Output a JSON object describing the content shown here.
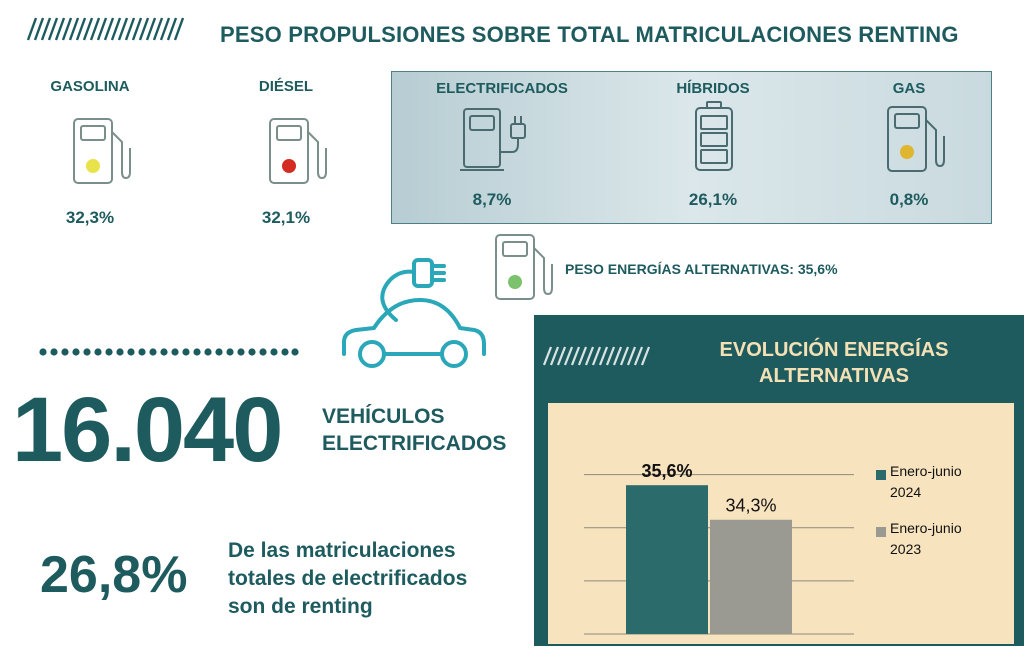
{
  "header": {
    "title": "PESO PROPULSIONES SOBRE TOTAL MATRICULACIONES RENTING"
  },
  "fuels": [
    {
      "label": "GASOLINA",
      "value": "32,3%",
      "icon": "fuel-pump-icon",
      "dot_color": "#e8e34a"
    },
    {
      "label": "DIÉSEL",
      "value": "32,1%",
      "icon": "fuel-pump-icon",
      "dot_color": "#d42b23"
    }
  ],
  "alternatives": [
    {
      "label": "ELECTRIFICADOS",
      "value": "8,7%",
      "icon": "electric-charger-icon"
    },
    {
      "label": "HÍBRIDOS",
      "value": "26,1%",
      "icon": "battery-icon"
    },
    {
      "label": "GAS",
      "value": "0,8%",
      "icon": "fuel-pump-icon",
      "dot_color": "#e0b530"
    }
  ],
  "alt_total": {
    "text": "PESO ENERGÍAS ALTERNATIVAS: 35,6%",
    "icon": "fuel-pump-icon",
    "dot_color": "#7cc26c"
  },
  "electrified": {
    "number": "16.040",
    "label_line1": "VEHÍCULOS",
    "label_line2": "ELECTRIFICADOS",
    "icon": "electric-car-icon"
  },
  "share": {
    "value": "26,8%",
    "line1": "De las matriculaciones",
    "line2": "totales de electrificados",
    "line3": "son de renting"
  },
  "colors": {
    "primary": "#1e5b5f",
    "panel_title": "#f3e0b5",
    "chart_bg": "#f7e4bf",
    "bar_2024": "#2b6b6b",
    "bar_2023": "#9a9a93"
  },
  "chart_data": {
    "type": "bar",
    "title": "EVOLUCIÓN ENERGÍAS ALTERNATIVAS",
    "title_line1": "EVOLUCIÓN ENERGÍAS",
    "title_line2": "ALTERNATIVAS",
    "categories": [
      "Enero-junio 2024",
      "Enero-junio 2023"
    ],
    "values": [
      35.6,
      34.3
    ],
    "value_labels": [
      "35,6%",
      "34,3%"
    ],
    "ylim": [
      30,
      37
    ],
    "grid": true,
    "legend_position": "right",
    "legend": [
      {
        "line1": "Enero-junio",
        "line2": "2024",
        "color": "#2b6b6b"
      },
      {
        "line1": "Enero-junio",
        "line2": "2023",
        "color": "#9a9a93"
      }
    ]
  }
}
